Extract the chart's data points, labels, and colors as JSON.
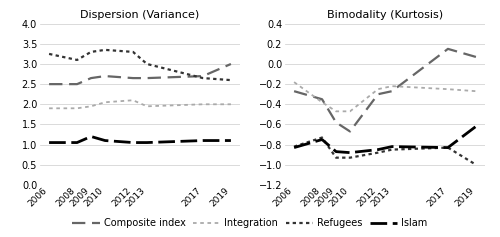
{
  "years": [
    2006,
    2008,
    2009,
    2010,
    2012,
    2013,
    2017,
    2019
  ],
  "variance": {
    "composite_index": [
      2.5,
      2.5,
      2.65,
      2.7,
      2.65,
      2.65,
      2.7,
      3.0
    ],
    "integration": [
      1.9,
      1.9,
      1.95,
      2.05,
      2.1,
      1.95,
      2.0,
      2.0
    ],
    "refugees": [
      3.25,
      3.1,
      3.3,
      3.35,
      3.3,
      3.0,
      2.65,
      2.6
    ],
    "islam": [
      1.05,
      1.05,
      1.2,
      1.1,
      1.05,
      1.05,
      1.1,
      1.1
    ]
  },
  "kurtosis": {
    "composite_index": [
      -0.27,
      -0.35,
      -0.58,
      -0.67,
      -0.3,
      -0.27,
      0.15,
      0.07
    ],
    "integration": [
      -0.18,
      -0.38,
      -0.47,
      -0.47,
      -0.25,
      -0.22,
      -0.25,
      -0.27
    ],
    "refugees": [
      -0.82,
      -0.73,
      -0.93,
      -0.93,
      -0.88,
      -0.85,
      -0.83,
      -1.0
    ],
    "islam": [
      -0.83,
      -0.75,
      -0.87,
      -0.88,
      -0.85,
      -0.82,
      -0.83,
      -0.62
    ]
  },
  "variance_ylim": [
    0,
    4
  ],
  "kurtosis_ylim": [
    -1.2,
    0.4
  ],
  "variance_yticks": [
    0,
    0.5,
    1,
    1.5,
    2,
    2.5,
    3,
    3.5,
    4
  ],
  "kurtosis_yticks": [
    -1.2,
    -1.0,
    -0.8,
    -0.6,
    -0.4,
    -0.2,
    0,
    0.2,
    0.4
  ],
  "title_variance": "Dispersion (Variance)",
  "title_kurtosis": "Bimodality (Kurtosis)",
  "legend_labels": [
    "Composite index",
    "Integration",
    "Refugees",
    "Islam"
  ],
  "background_color": "#ffffff",
  "line_styles": {
    "composite_index": {
      "color": "#666666",
      "lw": 1.6,
      "dash": [
        6,
        3
      ]
    },
    "integration": {
      "color": "#aaaaaa",
      "lw": 1.3,
      "dash": [
        2,
        2
      ]
    },
    "refugees": {
      "color": "#333333",
      "lw": 1.6,
      "dash": [
        1.5,
        1.5
      ]
    },
    "islam": {
      "color": "#000000",
      "lw": 2.0,
      "dash": [
        6,
        2
      ]
    }
  }
}
